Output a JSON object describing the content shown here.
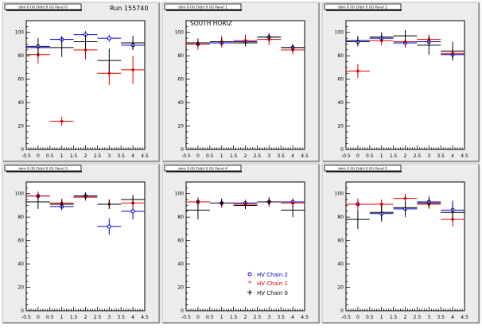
{
  "figure": {
    "run_label": "Run 155740",
    "panel_titles": [
      "dom 0 (0) Orbit 0 (0) Panel 0",
      "dom 0 (0) Orbit 0 (0) Panel 1",
      "dom 0 (0) Orbit 0 (0) Panel 2",
      "dom 0 (0) Orbit 0 (0) Panel 3",
      "dom 0 (0) Orbit 0 (0) Panel 4",
      "dom 0 (0) Orbit 0 (0) Panel 5"
    ],
    "annotation": "SOUTH HORIZ",
    "legend": [
      {
        "label": "HV Chain 2",
        "color": "#0000cc",
        "marker": "open-circle"
      },
      {
        "label": "HV Chain 1",
        "color": "#dd0000",
        "marker": "star"
      },
      {
        "label": "HV Chain 0",
        "color": "#000000",
        "marker": "cross"
      }
    ]
  },
  "chart_data": [
    {
      "type": "scatter",
      "panel": 0,
      "xlim": [
        -0.5,
        4.5
      ],
      "ylim": [
        0,
        110
      ],
      "x_ticks": [
        "-0.5",
        "0",
        "0.5",
        "1",
        "1.5",
        "2",
        "2.5",
        "3",
        "3.5",
        "4",
        "4.5"
      ],
      "y_ticks": [
        "0",
        "20",
        "40",
        "60",
        "80",
        "100"
      ],
      "series": [
        {
          "name": "HV Chain 2",
          "color": "#0000cc",
          "points": [
            {
              "x": 0,
              "y": 88,
              "err": 3
            },
            {
              "x": 1,
              "y": 94,
              "err": 3
            },
            {
              "x": 2,
              "y": 98,
              "err": 3
            },
            {
              "x": 3,
              "y": 95,
              "err": 3
            },
            {
              "x": 4,
              "y": 89,
              "err": 4
            }
          ]
        },
        {
          "name": "HV Chain 1",
          "color": "#dd0000",
          "points": [
            {
              "x": 0,
              "y": 81,
              "err": 8
            },
            {
              "x": 1,
              "y": 24,
              "err": 4
            },
            {
              "x": 2,
              "y": 85,
              "err": 8
            },
            {
              "x": 3,
              "y": 65,
              "err": 10
            },
            {
              "x": 4,
              "y": 68,
              "err": 12
            }
          ]
        },
        {
          "name": "HV Chain 0",
          "color": "#000000",
          "points": [
            {
              "x": 0,
              "y": 87,
              "err": 8
            },
            {
              "x": 1,
              "y": 87,
              "err": 8
            },
            {
              "x": 2,
              "y": 92,
              "err": 6
            },
            {
              "x": 3,
              "y": 76,
              "err": 10
            },
            {
              "x": 4,
              "y": 91,
              "err": 6
            }
          ]
        }
      ]
    },
    {
      "type": "scatter",
      "panel": 1,
      "xlim": [
        -0.5,
        4.5
      ],
      "ylim": [
        0,
        110
      ],
      "x_ticks": [
        "-0.5",
        "0",
        "0.5",
        "1",
        "1.5",
        "2",
        "2.5",
        "3",
        "3.5",
        "4",
        "4.5"
      ],
      "y_ticks": [
        "0",
        "20",
        "40",
        "60",
        "80",
        "100"
      ],
      "series": [
        {
          "name": "HV Chain 2",
          "color": "#0000cc",
          "points": [
            {
              "x": 0,
              "y": 90,
              "err": 3
            },
            {
              "x": 1,
              "y": 91,
              "err": 3
            },
            {
              "x": 2,
              "y": 92,
              "err": 3
            },
            {
              "x": 3,
              "y": 96,
              "err": 3
            },
            {
              "x": 4,
              "y": 87,
              "err": 3
            }
          ]
        },
        {
          "name": "HV Chain 1",
          "color": "#dd0000",
          "points": [
            {
              "x": 0,
              "y": 90,
              "err": 5
            },
            {
              "x": 1,
              "y": 92,
              "err": 5
            },
            {
              "x": 2,
              "y": 93,
              "err": 5
            },
            {
              "x": 3,
              "y": 94,
              "err": 5
            },
            {
              "x": 4,
              "y": 85,
              "err": 4
            }
          ]
        },
        {
          "name": "HV Chain 0",
          "color": "#000000",
          "points": [
            {
              "x": 0,
              "y": 91,
              "err": 3
            },
            {
              "x": 1,
              "y": 92,
              "err": 3
            },
            {
              "x": 2,
              "y": 91,
              "err": 3
            },
            {
              "x": 3,
              "y": 96,
              "err": 3
            },
            {
              "x": 4,
              "y": 87,
              "err": 3
            }
          ]
        }
      ]
    },
    {
      "type": "scatter",
      "panel": 2,
      "xlim": [
        -0.5,
        4.5
      ],
      "ylim": [
        0,
        110
      ],
      "x_ticks": [
        "-0.5",
        "0",
        "0.5",
        "1",
        "1.5",
        "2",
        "2.5",
        "3",
        "3.5",
        "4",
        "4.5"
      ],
      "y_ticks": [
        "0",
        "20",
        "40",
        "60",
        "80",
        "100"
      ],
      "series": [
        {
          "name": "HV Chain 2",
          "color": "#0000cc",
          "points": [
            {
              "x": 0,
              "y": 92,
              "err": 4
            },
            {
              "x": 1,
              "y": 95,
              "err": 3
            },
            {
              "x": 2,
              "y": 91,
              "err": 4
            },
            {
              "x": 3,
              "y": 92,
              "err": 4
            },
            {
              "x": 4,
              "y": 81,
              "err": 4
            }
          ]
        },
        {
          "name": "HV Chain 1",
          "color": "#dd0000",
          "points": [
            {
              "x": 0,
              "y": 67,
              "err": 6
            },
            {
              "x": 1,
              "y": 93,
              "err": 4
            },
            {
              "x": 2,
              "y": 92,
              "err": 4
            },
            {
              "x": 3,
              "y": 94,
              "err": 4
            },
            {
              "x": 4,
              "y": 82,
              "err": 4
            }
          ]
        },
        {
          "name": "HV Chain 0",
          "color": "#000000",
          "points": [
            {
              "x": 0,
              "y": 93,
              "err": 4
            },
            {
              "x": 1,
              "y": 96,
              "err": 4
            },
            {
              "x": 2,
              "y": 97,
              "err": 5
            },
            {
              "x": 3,
              "y": 89,
              "err": 8
            },
            {
              "x": 4,
              "y": 84,
              "err": 8
            }
          ]
        }
      ]
    },
    {
      "type": "scatter",
      "panel": 3,
      "xlim": [
        -0.5,
        4.5
      ],
      "ylim": [
        0,
        110
      ],
      "x_ticks": [
        "-0.5",
        "0",
        "0.5",
        "1",
        "1.5",
        "2",
        "2.5",
        "3",
        "3.5",
        "4",
        "4.5"
      ],
      "y_ticks": [
        "0",
        "20",
        "40",
        "60",
        "80",
        "100"
      ],
      "series": [
        {
          "name": "HV Chain 2",
          "color": "#0000cc",
          "points": [
            {
              "x": 0,
              "y": 98,
              "err": 3
            },
            {
              "x": 1,
              "y": 89,
              "err": 3
            },
            {
              "x": 2,
              "y": 98,
              "err": 3
            },
            {
              "x": 3,
              "y": 72,
              "err": 7
            },
            {
              "x": 4,
              "y": 85,
              "err": 7
            }
          ]
        },
        {
          "name": "HV Chain 1",
          "color": "#dd0000",
          "points": [
            {
              "x": 0,
              "y": 98,
              "err": 4
            },
            {
              "x": 1,
              "y": 92,
              "err": 4
            },
            {
              "x": 2,
              "y": 97,
              "err": 3
            },
            {
              "x": 3,
              "y": 91,
              "err": 4
            },
            {
              "x": 4,
              "y": 92,
              "err": 5
            }
          ]
        },
        {
          "name": "HV Chain 0",
          "color": "#000000",
          "points": [
            {
              "x": 0,
              "y": 93,
              "err": 6
            },
            {
              "x": 1,
              "y": 91,
              "err": 4
            },
            {
              "x": 2,
              "y": 98,
              "err": 3
            },
            {
              "x": 3,
              "y": 91,
              "err": 4
            },
            {
              "x": 4,
              "y": 95,
              "err": 4
            }
          ]
        }
      ]
    },
    {
      "type": "scatter",
      "panel": 4,
      "xlim": [
        -0.5,
        4.5
      ],
      "ylim": [
        0,
        110
      ],
      "x_ticks": [
        "-0.5",
        "0",
        "0.5",
        "1",
        "1.5",
        "2",
        "2.5",
        "3",
        "3.5",
        "4",
        "4.5"
      ],
      "y_ticks": [
        "0",
        "20",
        "40",
        "60",
        "80",
        "100"
      ],
      "series": [
        {
          "name": "HV Chain 2",
          "color": "#0000cc",
          "points": [
            {
              "x": 0,
              "y": 93,
              "err": 3
            },
            {
              "x": 1,
              "y": 92,
              "err": 3
            },
            {
              "x": 2,
              "y": 92,
              "err": 3
            },
            {
              "x": 3,
              "y": 93,
              "err": 3
            },
            {
              "x": 4,
              "y": 93,
              "err": 3
            }
          ]
        },
        {
          "name": "HV Chain 1",
          "color": "#dd0000",
          "points": [
            {
              "x": 0,
              "y": 93,
              "err": 4
            },
            {
              "x": 1,
              "y": 92,
              "err": 4
            },
            {
              "x": 2,
              "y": 91,
              "err": 4
            },
            {
              "x": 3,
              "y": 93,
              "err": 4
            },
            {
              "x": 4,
              "y": 92,
              "err": 4
            }
          ]
        },
        {
          "name": "HV Chain 0",
          "color": "#000000",
          "points": [
            {
              "x": 0,
              "y": 86,
              "err": 8
            },
            {
              "x": 1,
              "y": 92,
              "err": 3
            },
            {
              "x": 2,
              "y": 90,
              "err": 3
            },
            {
              "x": 3,
              "y": 93,
              "err": 3
            },
            {
              "x": 4,
              "y": 86,
              "err": 6
            }
          ]
        }
      ]
    },
    {
      "type": "scatter",
      "panel": 5,
      "xlim": [
        -0.5,
        4.5
      ],
      "ylim": [
        0,
        110
      ],
      "x_ticks": [
        "-0.5",
        "0",
        "0.5",
        "1",
        "1.5",
        "2",
        "2.5",
        "3",
        "3.5",
        "4",
        "4.5"
      ],
      "y_ticks": [
        "0",
        "20",
        "40",
        "60",
        "80",
        "100"
      ],
      "series": [
        {
          "name": "HV Chain 2",
          "color": "#0000cc",
          "points": [
            {
              "x": 0,
              "y": 91,
              "err": 3
            },
            {
              "x": 1,
              "y": 83,
              "err": 7
            },
            {
              "x": 2,
              "y": 87,
              "err": 7
            },
            {
              "x": 3,
              "y": 93,
              "err": 5
            },
            {
              "x": 4,
              "y": 86,
              "err": 8
            }
          ]
        },
        {
          "name": "HV Chain 1",
          "color": "#dd0000",
          "points": [
            {
              "x": 0,
              "y": 91,
              "err": 5
            },
            {
              "x": 1,
              "y": 91,
              "err": 4
            },
            {
              "x": 2,
              "y": 96,
              "err": 4
            },
            {
              "x": 3,
              "y": 91,
              "err": 4
            },
            {
              "x": 4,
              "y": 78,
              "err": 6
            }
          ]
        },
        {
          "name": "HV Chain 0",
          "color": "#000000",
          "points": [
            {
              "x": 0,
              "y": 78,
              "err": 8
            },
            {
              "x": 1,
              "y": 84,
              "err": 6
            },
            {
              "x": 2,
              "y": 88,
              "err": 6
            },
            {
              "x": 3,
              "y": 92,
              "err": 4
            },
            {
              "x": 4,
              "y": 84,
              "err": 6
            }
          ]
        }
      ]
    }
  ]
}
